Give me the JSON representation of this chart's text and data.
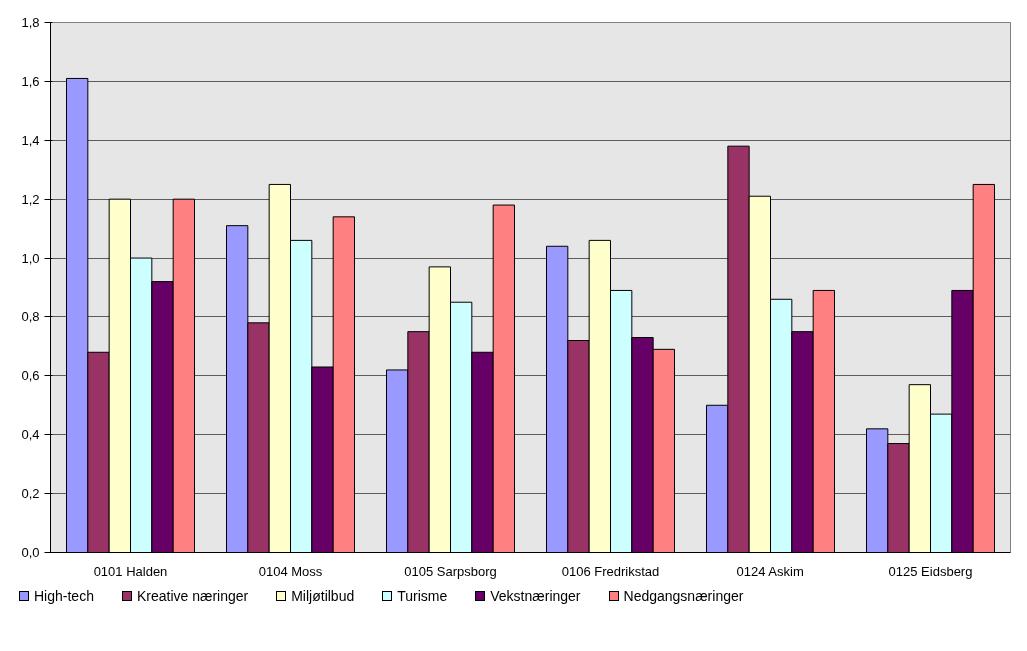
{
  "chart_data": {
    "type": "bar",
    "categories": [
      "0101 Halden",
      "0104 Moss",
      "0105 Sarpsborg",
      "0106 Fredrikstad",
      "0124 Askim",
      "0125 Eidsberg"
    ],
    "series": [
      {
        "name": "High-tech",
        "color": "#9999ff",
        "values": [
          1.61,
          1.11,
          0.62,
          1.04,
          0.5,
          0.42
        ]
      },
      {
        "name": "Kreative næringer",
        "color": "#993366",
        "values": [
          0.68,
          0.78,
          0.75,
          0.72,
          1.38,
          0.37
        ]
      },
      {
        "name": "Miljøtilbud",
        "color": "#ffffcc",
        "values": [
          1.2,
          1.25,
          0.97,
          1.06,
          1.21,
          0.57
        ]
      },
      {
        "name": "Turisme",
        "color": "#ccffff",
        "values": [
          1.0,
          1.06,
          0.85,
          0.89,
          0.86,
          0.47
        ]
      },
      {
        "name": "Vekstnæringer",
        "color": "#660066",
        "values": [
          0.92,
          0.63,
          0.68,
          0.73,
          0.75,
          0.89
        ]
      },
      {
        "name": "Nedgangsnæringer",
        "color": "#ff8080",
        "values": [
          1.2,
          1.14,
          1.18,
          0.69,
          0.89,
          1.25
        ]
      }
    ],
    "ylim": [
      0,
      1.8
    ],
    "yticks": [
      {
        "value": 0,
        "label": "0,0"
      },
      {
        "value": 0.2,
        "label": "0,2"
      },
      {
        "value": 0.4,
        "label": "0,4"
      },
      {
        "value": 0.6,
        "label": "0,6"
      },
      {
        "value": 0.8,
        "label": "0,8"
      },
      {
        "value": 1.0,
        "label": "1,0"
      },
      {
        "value": 1.2,
        "label": "1,2"
      },
      {
        "value": 1.4,
        "label": "1,4"
      },
      {
        "value": 1.6,
        "label": "1,6"
      },
      {
        "value": 1.8,
        "label": "1,8"
      }
    ],
    "grid": "y",
    "legend": "bottom"
  }
}
